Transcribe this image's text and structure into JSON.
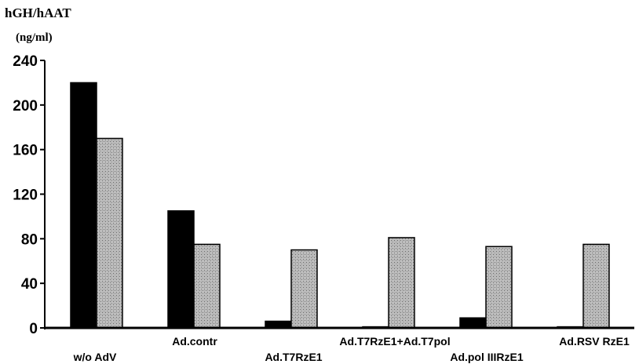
{
  "chart_data": {
    "type": "bar",
    "ylabel": [
      "hGH/hAAT",
      "(ng/ml)"
    ],
    "xlabel": "",
    "ylim": [
      0,
      240
    ],
    "yticks": [
      0,
      40,
      80,
      120,
      160,
      200,
      240
    ],
    "categories": [
      "w/o AdV",
      "Ad.contr",
      "Ad.T7RzE1",
      "Ad.T7RzE1+Ad.T7pol",
      "Ad.pol IIIRzE1",
      "Ad.RSV RzE1"
    ],
    "category_label_rows": [
      1,
      0,
      1,
      0,
      1,
      0
    ],
    "series": [
      {
        "values": [
          220,
          105,
          6,
          1,
          9,
          1
        ],
        "color": "#000000",
        "fill": "solid"
      },
      {
        "values": [
          170,
          75,
          70,
          81,
          73,
          75
        ],
        "color": "#9a9a9a",
        "fill": "stippled"
      }
    ],
    "grid": false,
    "legend": "none"
  }
}
